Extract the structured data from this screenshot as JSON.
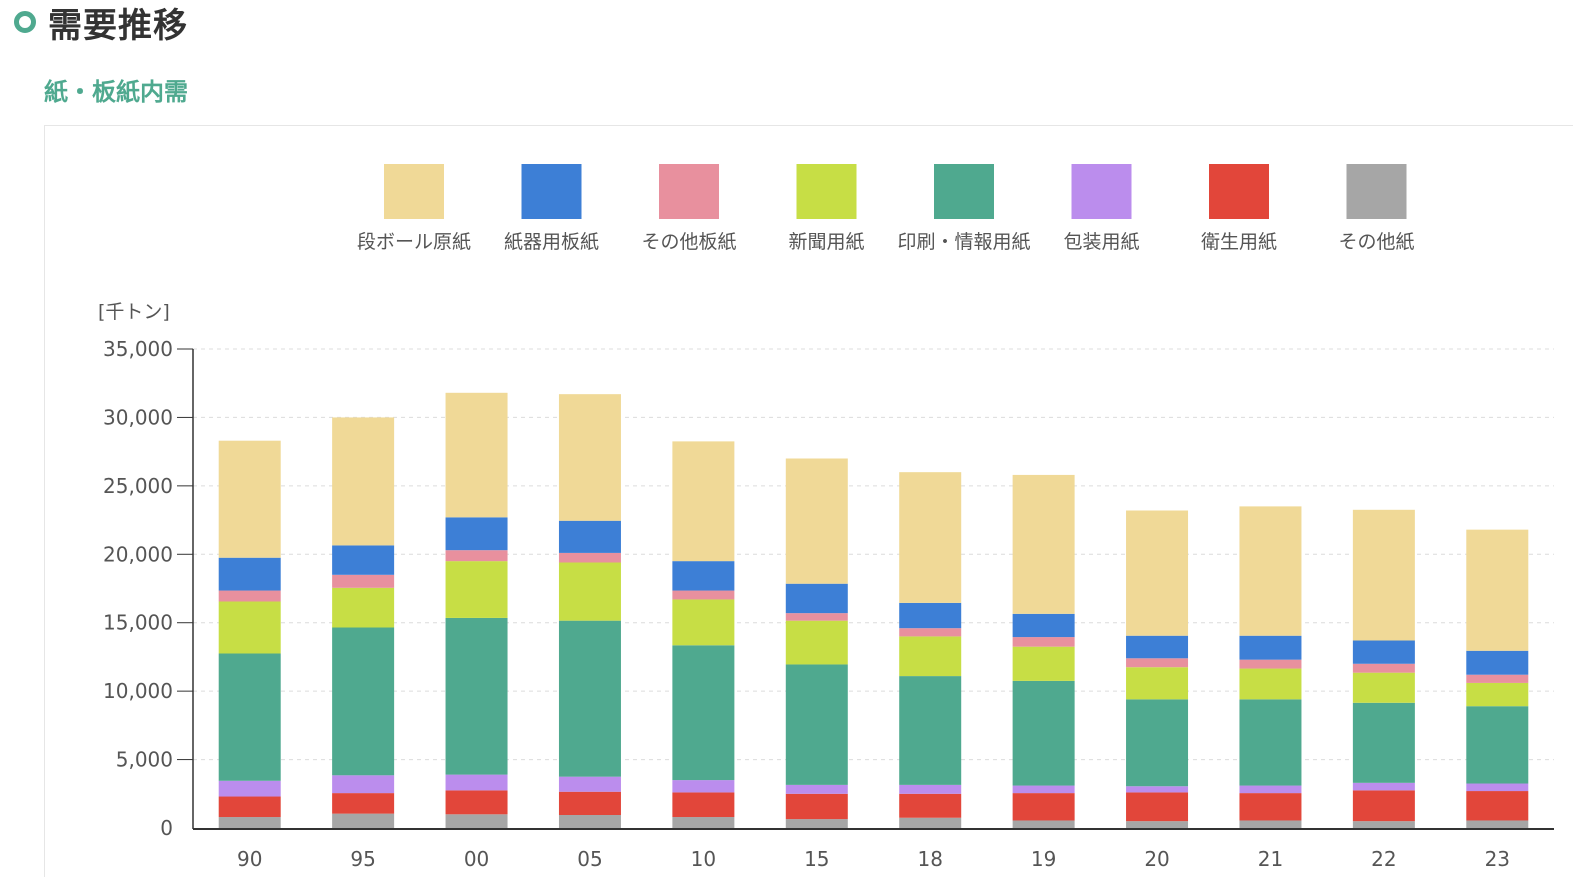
{
  "header": {
    "title": "需要推移",
    "subtitle": "紙・板紙内需"
  },
  "colors": {
    "accent": "#4fa98f"
  },
  "chart_data": {
    "type": "bar",
    "stacked": true,
    "y_unit_label": "[千トン]",
    "ylim": [
      0,
      35000
    ],
    "y_ticks": [
      0,
      5000,
      10000,
      15000,
      20000,
      25000,
      30000,
      35000
    ],
    "y_tick_labels": [
      "0",
      "5,000",
      "10,000",
      "15,000",
      "20,000",
      "25,000",
      "30,000",
      "35,000"
    ],
    "grid": true,
    "legend_position": "top",
    "categories": [
      "90",
      "95",
      "00",
      "05",
      "10",
      "15",
      "18",
      "19",
      "20",
      "21",
      "22",
      "23"
    ],
    "series": [
      {
        "name": "その他紙",
        "color": "#a6a6a6",
        "values": [
          800,
          1050,
          1000,
          950,
          800,
          650,
          750,
          550,
          500,
          550,
          500,
          550
        ]
      },
      {
        "name": "衛生用紙",
        "color": "#e2463a",
        "values": [
          1500,
          1500,
          1750,
          1700,
          1800,
          1850,
          1750,
          2000,
          2100,
          2000,
          2250,
          2150
        ]
      },
      {
        "name": "包装用紙",
        "color": "#bb8ded",
        "values": [
          1150,
          1300,
          1150,
          1100,
          900,
          650,
          650,
          550,
          450,
          550,
          550,
          550
        ]
      },
      {
        "name": "印刷・情報用紙",
        "color": "#4fa98f",
        "values": [
          9300,
          10800,
          11450,
          11400,
          9850,
          8800,
          7950,
          7650,
          6350,
          6300,
          5850,
          5650
        ]
      },
      {
        "name": "新聞用紙",
        "color": "#c7de45",
        "values": [
          3800,
          2900,
          4150,
          4250,
          3350,
          3200,
          2900,
          2500,
          2350,
          2250,
          2200,
          1700
        ]
      },
      {
        "name": "その他板紙",
        "color": "#e8909e",
        "values": [
          800,
          950,
          800,
          700,
          650,
          550,
          600,
          700,
          650,
          650,
          650,
          600
        ]
      },
      {
        "name": "紙器用板紙",
        "color": "#3d7fd6",
        "values": [
          2400,
          2150,
          2400,
          2350,
          2150,
          2150,
          1850,
          1700,
          1650,
          1750,
          1700,
          1750
        ]
      },
      {
        "name": "段ボール原紙",
        "color": "#f0d997",
        "values": [
          8550,
          9350,
          9100,
          9250,
          8750,
          9150,
          9550,
          10150,
          9150,
          9450,
          9550,
          8850
        ]
      }
    ]
  }
}
